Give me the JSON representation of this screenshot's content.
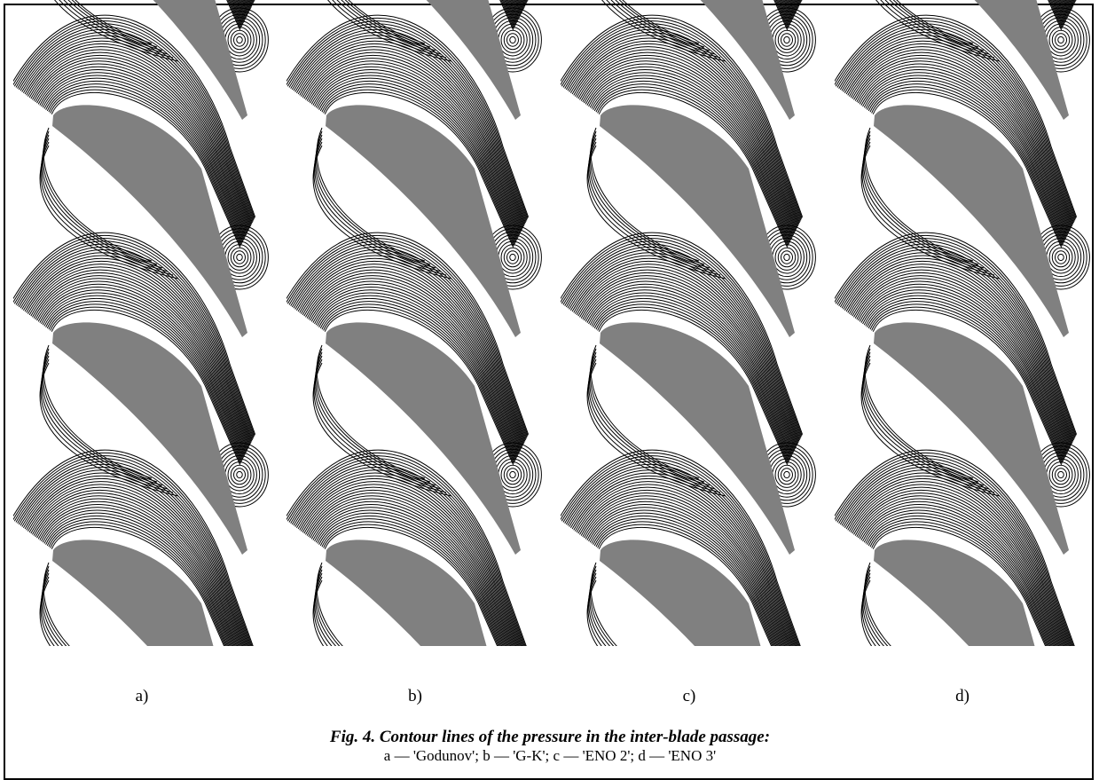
{
  "panels": [
    {
      "label": "a)"
    },
    {
      "label": "b)"
    },
    {
      "label": "c)"
    },
    {
      "label": "d)"
    }
  ],
  "caption": {
    "title": "Fig. 4. Contour lines of the pressure in the inter-blade passage:",
    "legend": "a — 'Godunov'; b —  'G-K'; c — 'ENO 2'; d — 'ENO 3'"
  }
}
